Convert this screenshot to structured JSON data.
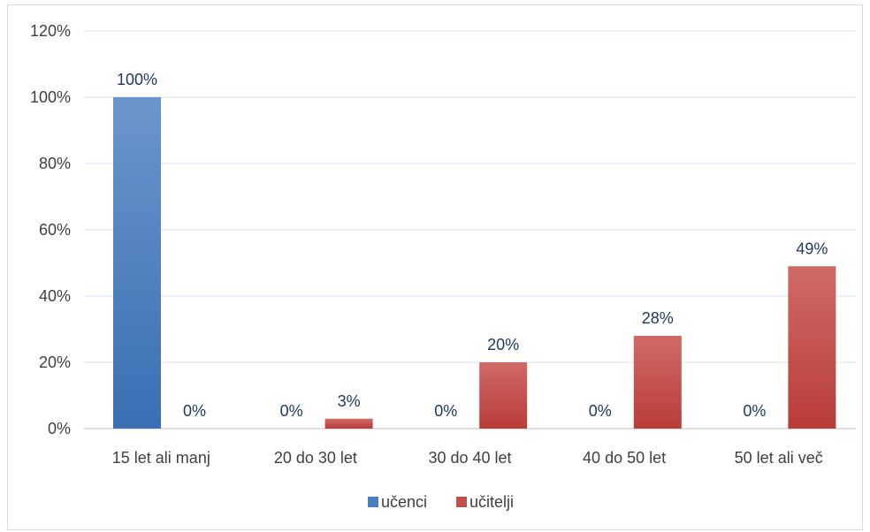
{
  "chart_data": {
    "type": "bar",
    "categories": [
      "15 let ali manj",
      "20 do 30 let",
      "30 do 40 let",
      "40 do 50 let",
      "50 let ali več"
    ],
    "series": [
      {
        "name": "učenci",
        "values": [
          100,
          0,
          0,
          0,
          0
        ],
        "color": "#4a7ebf"
      },
      {
        "name": "učitelji",
        "values": [
          0,
          3,
          20,
          28,
          49
        ],
        "color": "#c0504d"
      }
    ],
    "data_labels": [
      [
        "100%",
        "0%",
        "0%",
        "0%",
        "0%"
      ],
      [
        "0%",
        "3%",
        "20%",
        "28%",
        "49%"
      ]
    ],
    "ylim": [
      0,
      120
    ],
    "y_ticks": [
      0,
      20,
      40,
      60,
      80,
      100,
      120
    ],
    "y_tick_labels": [
      "0%",
      "20%",
      "40%",
      "60%",
      "80%",
      "100%",
      "120%"
    ],
    "grid": true,
    "legend_position": "bottom"
  }
}
